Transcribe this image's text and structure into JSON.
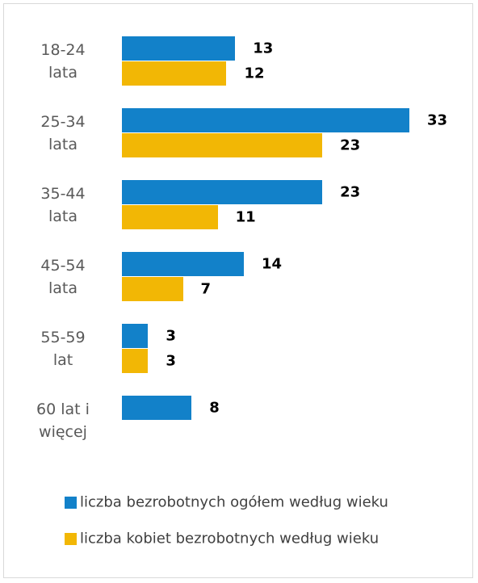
{
  "chart_data": {
    "type": "bar",
    "orientation": "horizontal",
    "categories": [
      "18-24 lata",
      "25-34 lata",
      "35-44 lata",
      "45-54 lata",
      "55-59 lat",
      "60 lat i więcej"
    ],
    "series": [
      {
        "name": "liczba bezrobotnych ogółem według wieku",
        "color": "#1281c9",
        "values": [
          13,
          33,
          23,
          14,
          3,
          8
        ]
      },
      {
        "name": "liczba kobiet bezrobotnych według wieku",
        "color": "#f2b705",
        "values": [
          12,
          23,
          11,
          7,
          3,
          null
        ]
      }
    ],
    "legend": "bottom"
  }
}
